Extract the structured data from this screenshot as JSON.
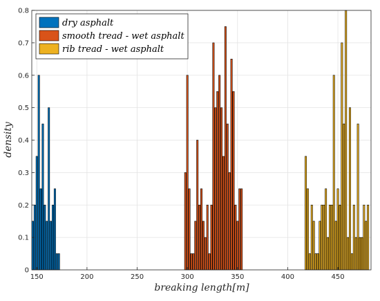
{
  "chart_data": {
    "type": "bar",
    "xlabel": "breaking length[m]",
    "ylabel": "density",
    "xlim": [
      145,
      483
    ],
    "ylim": [
      0,
      0.8
    ],
    "x_ticks": [
      150,
      200,
      250,
      300,
      350,
      400,
      450
    ],
    "y_ticks": [
      0,
      0.1,
      0.2,
      0.3,
      0.4,
      0.5,
      0.6,
      0.7,
      0.8
    ],
    "grid": true,
    "legend_position": "top-left",
    "bar_width": 1.6,
    "series": [
      {
        "name": "dry asphalt",
        "color": "#0072BD",
        "x": [
          146,
          148,
          150,
          152,
          154,
          156,
          158,
          160,
          162,
          164,
          166,
          168,
          170,
          172
        ],
        "values": [
          0.15,
          0.2,
          0.35,
          0.6,
          0.25,
          0.45,
          0.2,
          0.15,
          0.5,
          0.15,
          0.2,
          0.25,
          0.05,
          0.05
        ]
      },
      {
        "name": "smooth tread - wet asphalt",
        "color": "#D95319",
        "x": [
          298,
          300,
          302,
          304,
          306,
          308,
          310,
          312,
          314,
          316,
          318,
          320,
          322,
          324,
          326,
          328,
          330,
          332,
          334,
          336,
          338,
          340,
          342,
          344,
          346,
          348,
          350,
          352,
          354
        ],
        "values": [
          0.3,
          0.6,
          0.25,
          0.05,
          0.05,
          0.15,
          0.4,
          0.2,
          0.25,
          0.15,
          0.1,
          0.2,
          0.05,
          0.2,
          0.7,
          0.5,
          0.55,
          0.6,
          0.5,
          0.35,
          0.75,
          0.45,
          0.3,
          0.65,
          0.55,
          0.2,
          0.15,
          0.25,
          0.25
        ]
      },
      {
        "name": "rib tread - wet asphalt",
        "color": "#EDB120",
        "x": [
          418,
          420,
          422,
          424,
          426,
          428,
          430,
          432,
          434,
          436,
          438,
          440,
          442,
          444,
          446,
          448,
          450,
          452,
          454,
          456,
          458,
          460,
          462,
          464,
          466,
          468,
          470,
          472,
          474,
          476,
          478,
          480
        ],
        "values": [
          0.35,
          0.25,
          0.05,
          0.2,
          0.15,
          0.05,
          0.05,
          0.15,
          0.2,
          0.2,
          0.25,
          0.1,
          0.2,
          0.2,
          0.6,
          0.15,
          0.25,
          0.2,
          0.7,
          0.45,
          0.8,
          0.1,
          0.5,
          0.05,
          0.2,
          0.1,
          0.45,
          0.1,
          0.1,
          0.2,
          0.15,
          0.2
        ]
      }
    ]
  }
}
